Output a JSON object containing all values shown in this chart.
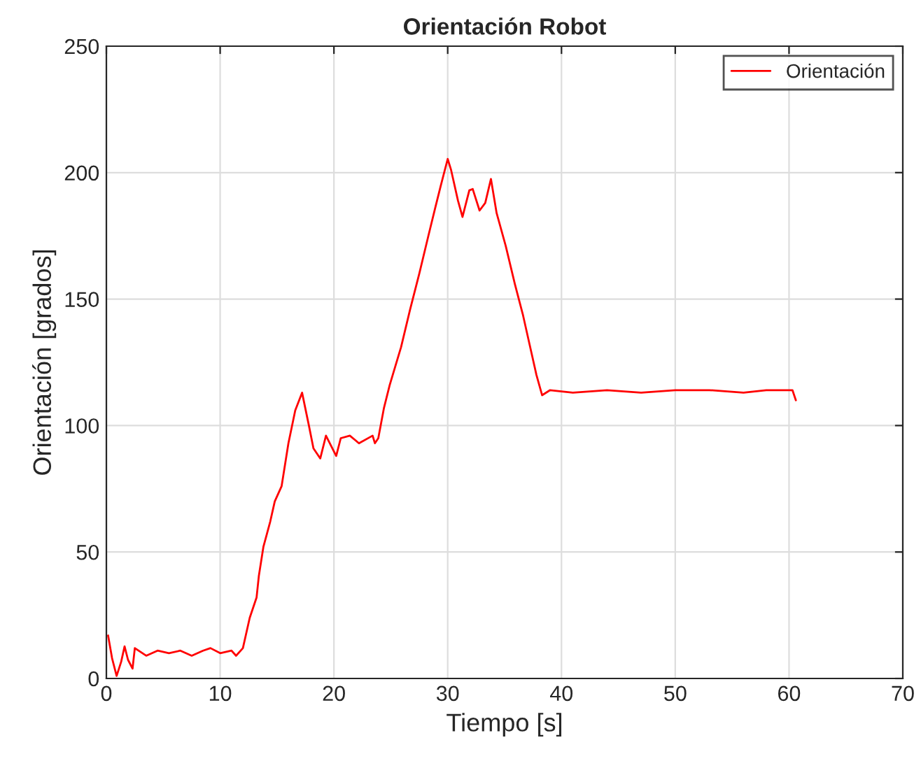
{
  "chart_data": {
    "type": "line",
    "title": "Orientación Robot",
    "xlabel": "Tiempo [s]",
    "ylabel": "Orientación [grados]",
    "xlim": [
      0,
      70
    ],
    "ylim": [
      0,
      250
    ],
    "xticks": [
      0,
      10,
      20,
      30,
      40,
      50,
      60,
      70
    ],
    "yticks": [
      0,
      50,
      100,
      150,
      200,
      250
    ],
    "grid": true,
    "legend": "top right",
    "series": [
      {
        "name": "Orientación",
        "color": "#ff0000",
        "x": [
          0.15,
          0.5,
          0.9,
          1.3,
          1.6,
          1.9,
          2.3,
          2.5,
          3.5,
          4.5,
          5.5,
          6.5,
          7.5,
          8.5,
          9.15,
          10,
          11,
          11.4,
          12,
          12.6,
          13.2,
          13.4,
          13.8,
          14.4,
          14.8,
          15.4,
          16,
          16.6,
          17.2,
          17.8,
          18.2,
          18.8,
          19.3,
          20.2,
          20.6,
          21.4,
          22.2,
          23.4,
          23.6,
          23.9,
          24.4,
          24.9,
          25.9,
          26.7,
          27.5,
          28.3,
          28.9,
          29.4,
          30,
          30.3,
          30.9,
          31.3,
          31.9,
          32.2,
          32.8,
          33.3,
          33.8,
          34.3,
          35.1,
          35.9,
          36.6,
          37.2,
          37.8,
          38.3,
          39,
          41,
          44,
          47,
          50,
          53,
          56,
          58,
          59.5,
          60.3,
          60.6
        ],
        "values": [
          17,
          8,
          1,
          6.6,
          12.7,
          7.4,
          3.9,
          12,
          9,
          11,
          10,
          11,
          9,
          11,
          12,
          10,
          11,
          9,
          12,
          24,
          32,
          40.5,
          52,
          62,
          70,
          76,
          93,
          106,
          113,
          100,
          91,
          87,
          96,
          88,
          95,
          96,
          93,
          96,
          93,
          95,
          107,
          116,
          131,
          146,
          160,
          175,
          186,
          195,
          205.4,
          201,
          189,
          182.5,
          193,
          193.5,
          185,
          188,
          197.5,
          184,
          171,
          156,
          144,
          132,
          120,
          112,
          114,
          113,
          114,
          113,
          114,
          114,
          113,
          114,
          114,
          114,
          110
        ]
      }
    ]
  }
}
